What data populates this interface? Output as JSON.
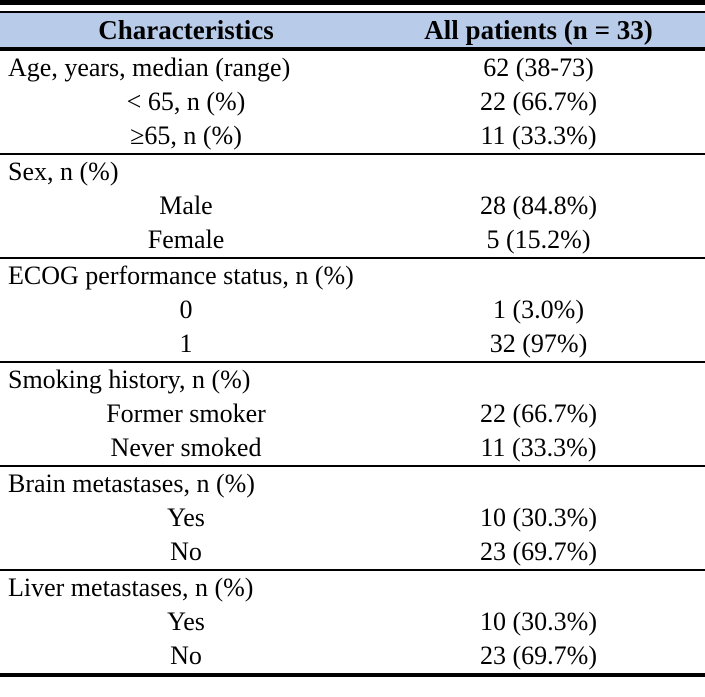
{
  "table": {
    "header_bg": "#b8cbe8",
    "rule_color": "#000000",
    "columns": [
      "Characteristics",
      "All patients (n = 33)"
    ],
    "sections": [
      {
        "rows": [
          {
            "label": "Age, years, median (range)",
            "value": "62 (38-73)",
            "indent": false
          },
          {
            "label": "< 65, n (%)",
            "value": "22 (66.7%)",
            "indent": true
          },
          {
            "label": "≥65, n (%)",
            "value": "11 (33.3%)",
            "indent": true
          }
        ]
      },
      {
        "rows": [
          {
            "label": "Sex, n (%)",
            "value": "",
            "indent": false
          },
          {
            "label": "Male",
            "value": "28 (84.8%)",
            "indent": true
          },
          {
            "label": "Female",
            "value": "5 (15.2%)",
            "indent": true
          }
        ]
      },
      {
        "rows": [
          {
            "label": "ECOG performance status, n (%)",
            "value": "",
            "indent": false
          },
          {
            "label": "0",
            "value": "1 (3.0%)",
            "indent": true
          },
          {
            "label": "1",
            "value": "32 (97%)",
            "indent": true
          }
        ]
      },
      {
        "rows": [
          {
            "label": "Smoking history, n (%)",
            "value": "",
            "indent": false
          },
          {
            "label": "Former smoker",
            "value": "22 (66.7%)",
            "indent": true
          },
          {
            "label": "Never smoked",
            "value": "11 (33.3%)",
            "indent": true
          }
        ]
      },
      {
        "rows": [
          {
            "label": "Brain metastases, n (%)",
            "value": "",
            "indent": false
          },
          {
            "label": "Yes",
            "value": "10 (30.3%)",
            "indent": true
          },
          {
            "label": "No",
            "value": "23 (69.7%)",
            "indent": true
          }
        ]
      },
      {
        "rows": [
          {
            "label": "Liver metastases, n (%)",
            "value": "",
            "indent": false
          },
          {
            "label": "Yes",
            "value": "10 (30.3%)",
            "indent": true
          },
          {
            "label": "No",
            "value": "23 (69.7%)",
            "indent": true
          }
        ]
      }
    ]
  }
}
